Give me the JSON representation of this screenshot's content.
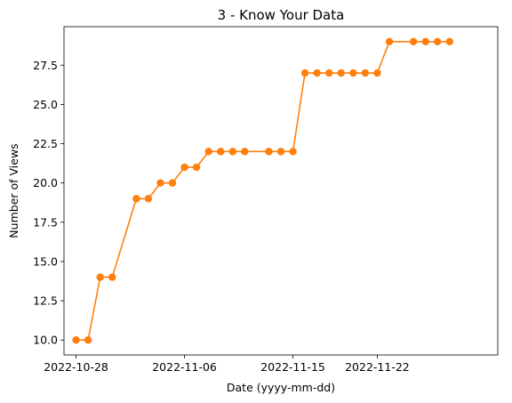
{
  "chart_data": {
    "type": "line",
    "title": "3 - Know Your Data",
    "xlabel": "Date (yyyy-mm-dd)",
    "ylabel": "Number of Views",
    "x_ticks": [
      "2022-10-28",
      "2022-11-06",
      "2022-11-15",
      "2022-11-22"
    ],
    "y_ticks": [
      "10.0",
      "12.5",
      "15.0",
      "17.5",
      "20.0",
      "22.5",
      "25.0",
      "27.5"
    ],
    "xlim": [
      "2022-10-27",
      "2022-12-02"
    ],
    "ylim": [
      9.05,
      29.95
    ],
    "grid": false,
    "series": [
      {
        "color": "#ff7f0e",
        "marker": "circle",
        "points": [
          {
            "x": "2022-10-28",
            "y": 10
          },
          {
            "x": "2022-10-29",
            "y": 10
          },
          {
            "x": "2022-10-30",
            "y": 14
          },
          {
            "x": "2022-10-31",
            "y": 14
          },
          {
            "x": "2022-11-02",
            "y": 19
          },
          {
            "x": "2022-11-03",
            "y": 19
          },
          {
            "x": "2022-11-04",
            "y": 20
          },
          {
            "x": "2022-11-05",
            "y": 20
          },
          {
            "x": "2022-11-06",
            "y": 21
          },
          {
            "x": "2022-11-07",
            "y": 21
          },
          {
            "x": "2022-11-08",
            "y": 22
          },
          {
            "x": "2022-11-09",
            "y": 22
          },
          {
            "x": "2022-11-10",
            "y": 22
          },
          {
            "x": "2022-11-11",
            "y": 22
          },
          {
            "x": "2022-11-13",
            "y": 22
          },
          {
            "x": "2022-11-14",
            "y": 22
          },
          {
            "x": "2022-11-15",
            "y": 22
          },
          {
            "x": "2022-11-16",
            "y": 27
          },
          {
            "x": "2022-11-17",
            "y": 27
          },
          {
            "x": "2022-11-18",
            "y": 27
          },
          {
            "x": "2022-11-19",
            "y": 27
          },
          {
            "x": "2022-11-20",
            "y": 27
          },
          {
            "x": "2022-11-21",
            "y": 27
          },
          {
            "x": "2022-11-22",
            "y": 27
          },
          {
            "x": "2022-11-23",
            "y": 29
          },
          {
            "x": "2022-11-25",
            "y": 29
          },
          {
            "x": "2022-11-26",
            "y": 29
          },
          {
            "x": "2022-11-27",
            "y": 29
          },
          {
            "x": "2022-11-28",
            "y": 29
          }
        ]
      }
    ]
  }
}
